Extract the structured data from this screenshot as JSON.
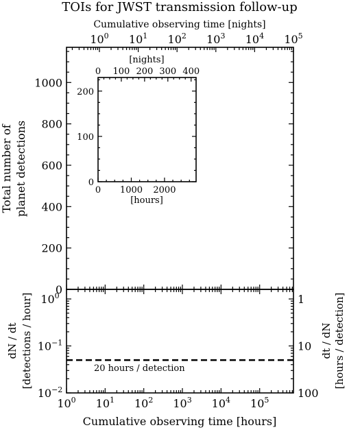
{
  "chart_data": [
    {
      "id": "main",
      "type": "line",
      "title": "TOIs for JWST transmission follow-up",
      "ylabel": [
        "Total number of",
        "planet detections"
      ],
      "ylim": [
        0,
        1170
      ],
      "yticks": [
        0,
        200,
        400,
        600,
        800,
        1000
      ],
      "x_scale": "log",
      "xlim": [
        1,
        750000
      ],
      "top_axis": {
        "label": "Cumulative observing time [nights]",
        "scale": "log",
        "tick_bases": [
          "10",
          "10",
          "10",
          "10",
          "10",
          "10"
        ],
        "tick_exponents": [
          "0",
          "1",
          "2",
          "3",
          "4",
          "5"
        ]
      },
      "series": []
    },
    {
      "id": "inset",
      "type": "line",
      "xlabel": "[hours]",
      "ylim": [
        0,
        230
      ],
      "yticks": [
        0,
        100,
        200
      ],
      "xlim": [
        0,
        2950
      ],
      "xticks": [
        0,
        1000,
        2000
      ],
      "top_axis": {
        "label": "[nights]",
        "ticks": [
          0,
          100,
          200,
          300,
          400
        ]
      },
      "series": []
    },
    {
      "id": "rate",
      "type": "line",
      "xlabel": "Cumulative observing time [hours]",
      "ylabel": [
        "dN / dt",
        "[detections / hour]"
      ],
      "y_scale": "log",
      "ylim": [
        0.01,
        1.6
      ],
      "ytick_bases": [
        "10",
        "10",
        "10"
      ],
      "ytick_exponents": [
        "−2",
        "−1",
        "0"
      ],
      "x_scale": "log",
      "xlim": [
        1,
        750000
      ],
      "xtick_bases": [
        "10",
        "10",
        "10",
        "10",
        "10",
        "10"
      ],
      "xtick_exponents": [
        "0",
        "1",
        "2",
        "3",
        "4",
        "5"
      ],
      "right_axis": {
        "label": [
          "dt / dN",
          "[hours / detection]"
        ],
        "ticks": [
          "1",
          "10",
          "100"
        ]
      },
      "reference_line": {
        "y": 0.05,
        "style": "dashed",
        "annotation": "20 hours / detection"
      },
      "series": []
    }
  ]
}
